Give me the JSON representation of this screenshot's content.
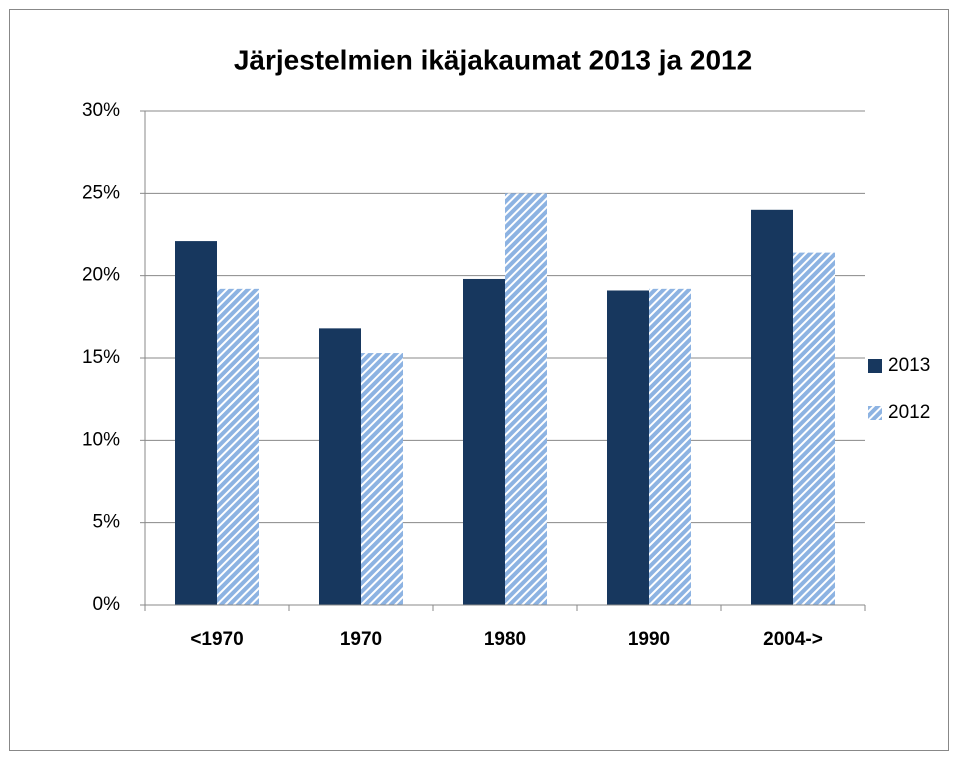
{
  "chart_data": {
    "type": "bar",
    "title": "Järjestelmien ikäjakaumat 2013 ja 2012",
    "categories": [
      "<1970",
      "1970",
      "1980",
      "1990",
      "2004->"
    ],
    "series": [
      {
        "name": "2013",
        "color": "#17375e",
        "values": [
          22.1,
          16.8,
          19.8,
          19.1,
          24.0
        ]
      },
      {
        "name": "2012",
        "color": "#8db3e2",
        "values": [
          19.2,
          15.3,
          25.0,
          19.2,
          21.4
        ]
      }
    ],
    "ylim": [
      0,
      30
    ],
    "yticks": [
      {
        "value": 0,
        "label": "0%"
      },
      {
        "value": 5,
        "label": "5%"
      },
      {
        "value": 10,
        "label": "10%"
      },
      {
        "value": 15,
        "label": "15%"
      },
      {
        "value": 20,
        "label": "20%"
      },
      {
        "value": 25,
        "label": "25%"
      },
      {
        "value": 30,
        "label": "30%"
      }
    ],
    "grid": true,
    "legend": "right"
  }
}
